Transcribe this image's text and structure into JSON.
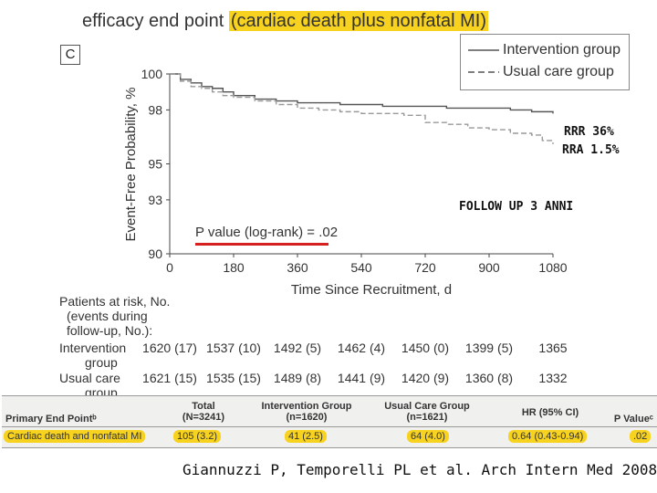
{
  "title": {
    "prefix": "efficacy end point ",
    "highlight": "(cardiac death plus nonfatal MI)"
  },
  "panel_letter": "C",
  "legend": {
    "intervention": "Intervention group",
    "usual": "Usual care group"
  },
  "colors": {
    "intervention": "#555555",
    "usual": "#999999",
    "highlight": "#f7d21e",
    "red_line": "#d62020"
  },
  "chart_data": {
    "type": "line",
    "xlabel": "Time Since Recruitment, d",
    "ylabel": "Event-Free Probability, %",
    "xlim": [
      0,
      1080
    ],
    "ylim": [
      90,
      100
    ],
    "x_ticks": [
      "0",
      "180",
      "360",
      "540",
      "720",
      "900",
      "1080"
    ],
    "y_ticks": [
      "90",
      "93",
      "95",
      "98",
      "100"
    ],
    "series": [
      {
        "name": "Intervention group",
        "style": "solid",
        "x": [
          0,
          30,
          60,
          90,
          120,
          150,
          180,
          240,
          300,
          360,
          420,
          480,
          540,
          600,
          660,
          720,
          780,
          840,
          900,
          960,
          1020,
          1050,
          1080
        ],
        "y": [
          100,
          99.7,
          99.5,
          99.3,
          99.2,
          99.0,
          98.8,
          98.6,
          98.5,
          98.4,
          98.4,
          98.3,
          98.3,
          98.2,
          98.2,
          98.2,
          98.1,
          98.1,
          98.1,
          98.0,
          97.9,
          97.9,
          97.8
        ]
      },
      {
        "name": "Usual care group",
        "style": "dashed",
        "x": [
          0,
          30,
          60,
          90,
          120,
          150,
          180,
          240,
          300,
          360,
          420,
          480,
          540,
          600,
          660,
          720,
          780,
          840,
          900,
          960,
          1020,
          1050,
          1080
        ],
        "y": [
          100,
          99.6,
          99.3,
          99.2,
          99.0,
          98.8,
          98.7,
          98.5,
          98.3,
          98.1,
          98.0,
          97.9,
          97.8,
          97.8,
          97.7,
          97.3,
          97.2,
          97.0,
          96.9,
          96.7,
          96.6,
          96.3,
          96.1
        ]
      }
    ],
    "annotations": [
      "RRR 36%",
      "RRA 1.5%",
      "FOLLOW UP 3 ANNI"
    ],
    "pvalue_label": "P value (log-rank) = .02",
    "grid": false,
    "legend_position": "top-right"
  },
  "risk_table": {
    "title_lines": [
      "Patients at risk, No.",
      "(events during",
      "follow-up, No.):"
    ],
    "rows": [
      {
        "label": "Intervention",
        "label2": "group",
        "values": [
          "1620 (17)",
          "1537 (10)",
          "1492 (5)",
          "1462 (4)",
          "1450 (0)",
          "1399 (5)",
          "1365"
        ]
      },
      {
        "label": "Usual care",
        "label2": "group",
        "values": [
          "1621 (15)",
          "1535 (15)",
          "1489 (8)",
          "1441 (9)",
          "1420 (9)",
          "1360 (8)",
          "1332"
        ]
      }
    ]
  },
  "endpoint_table": {
    "headers": [
      "Primary End Pointᵇ",
      "Total",
      "(N=3241)",
      "Intervention Group",
      "(n=1620)",
      "Usual Care Group",
      "(n=1621)",
      "HR (95% CI)",
      "P Valueᶜ"
    ],
    "row": [
      "Cardiac death and nonfatal MI",
      "105 (3.2)",
      "41 (2.5)",
      "64 (4.0)",
      "0.64 (0.43-0.94)",
      ".02"
    ]
  },
  "citation": "Giannuzzi P, Temporelli PL et al. Arch Intern Med 2008"
}
